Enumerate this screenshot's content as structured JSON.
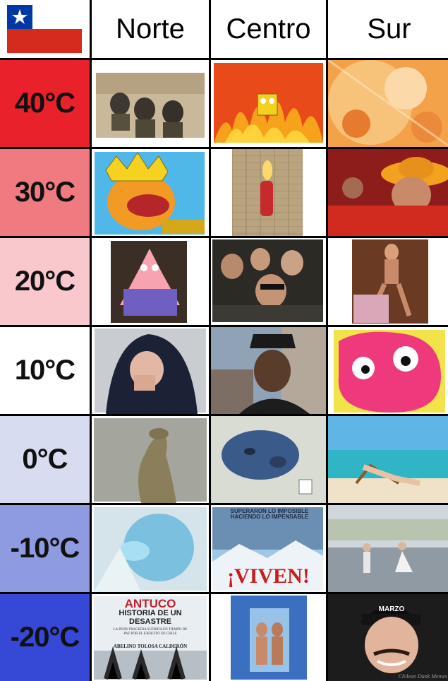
{
  "header": {
    "flag_icon": "chile-flag-icon",
    "columns": [
      "Norte",
      "Centro",
      "Sur"
    ]
  },
  "rows": [
    {
      "temp": "40°C",
      "color": "#e8212b",
      "images": [
        "desert-masked-soldiers-image",
        "spongebob-fire-image",
        "explosion-splash-image"
      ]
    },
    {
      "temp": "30°C",
      "color": "#ef7b80",
      "images": [
        "cartoon-king-laughing-image",
        "fire-extinguisher-wall-image",
        "sombrero-fan-laughing-image"
      ]
    },
    {
      "temp": "20°C",
      "color": "#f8c8cc",
      "images": [
        "patrick-star-sweater-image",
        "group-selfie-friends-image",
        "dancing-kid-image"
      ]
    },
    {
      "temp": "10°C",
      "color": "#ffffff",
      "images": [
        "man-cold-jacket-image",
        "interviewed-man-hat-image",
        "pink-monster-face-image"
      ]
    },
    {
      "temp": "0°C",
      "color": "#d8dcf0",
      "images": [
        "frozen-sloth-image",
        "blue-frozen-face-image",
        "beach-chair-relax-image"
      ]
    },
    {
      "temp": "-10°C",
      "color": "#8e9be0",
      "images": [
        "frozen-blue-man-image",
        "viven-movie-poster-image",
        "rain-dancing-couple-image"
      ]
    },
    {
      "temp": "-20°C",
      "color": "#3548d6",
      "images": [
        "antuco-book-cover-image",
        "frozen-couple-ice-image",
        "smiling-man-beanie-image"
      ]
    }
  ],
  "texts": {
    "viven_top": "SUPERARON LO IMPOSIBLE HACIENDO LO IMPENSABLE",
    "viven_title": "¡VIVEN!",
    "antuco_title": "ANTUCO",
    "antuco_sub": "HISTORIA DE UN DESASTRE",
    "antuco_small": "LA PEOR TRAGEDIA SUFRIDA EN TIEMPO DE PAZ POR EL EJERCITO DE CHILE",
    "antuco_author": "ABELINO TOLOSA CALDERÓN",
    "beanie_text": "MARZO",
    "watermark": "Chilean Dank Memes"
  }
}
